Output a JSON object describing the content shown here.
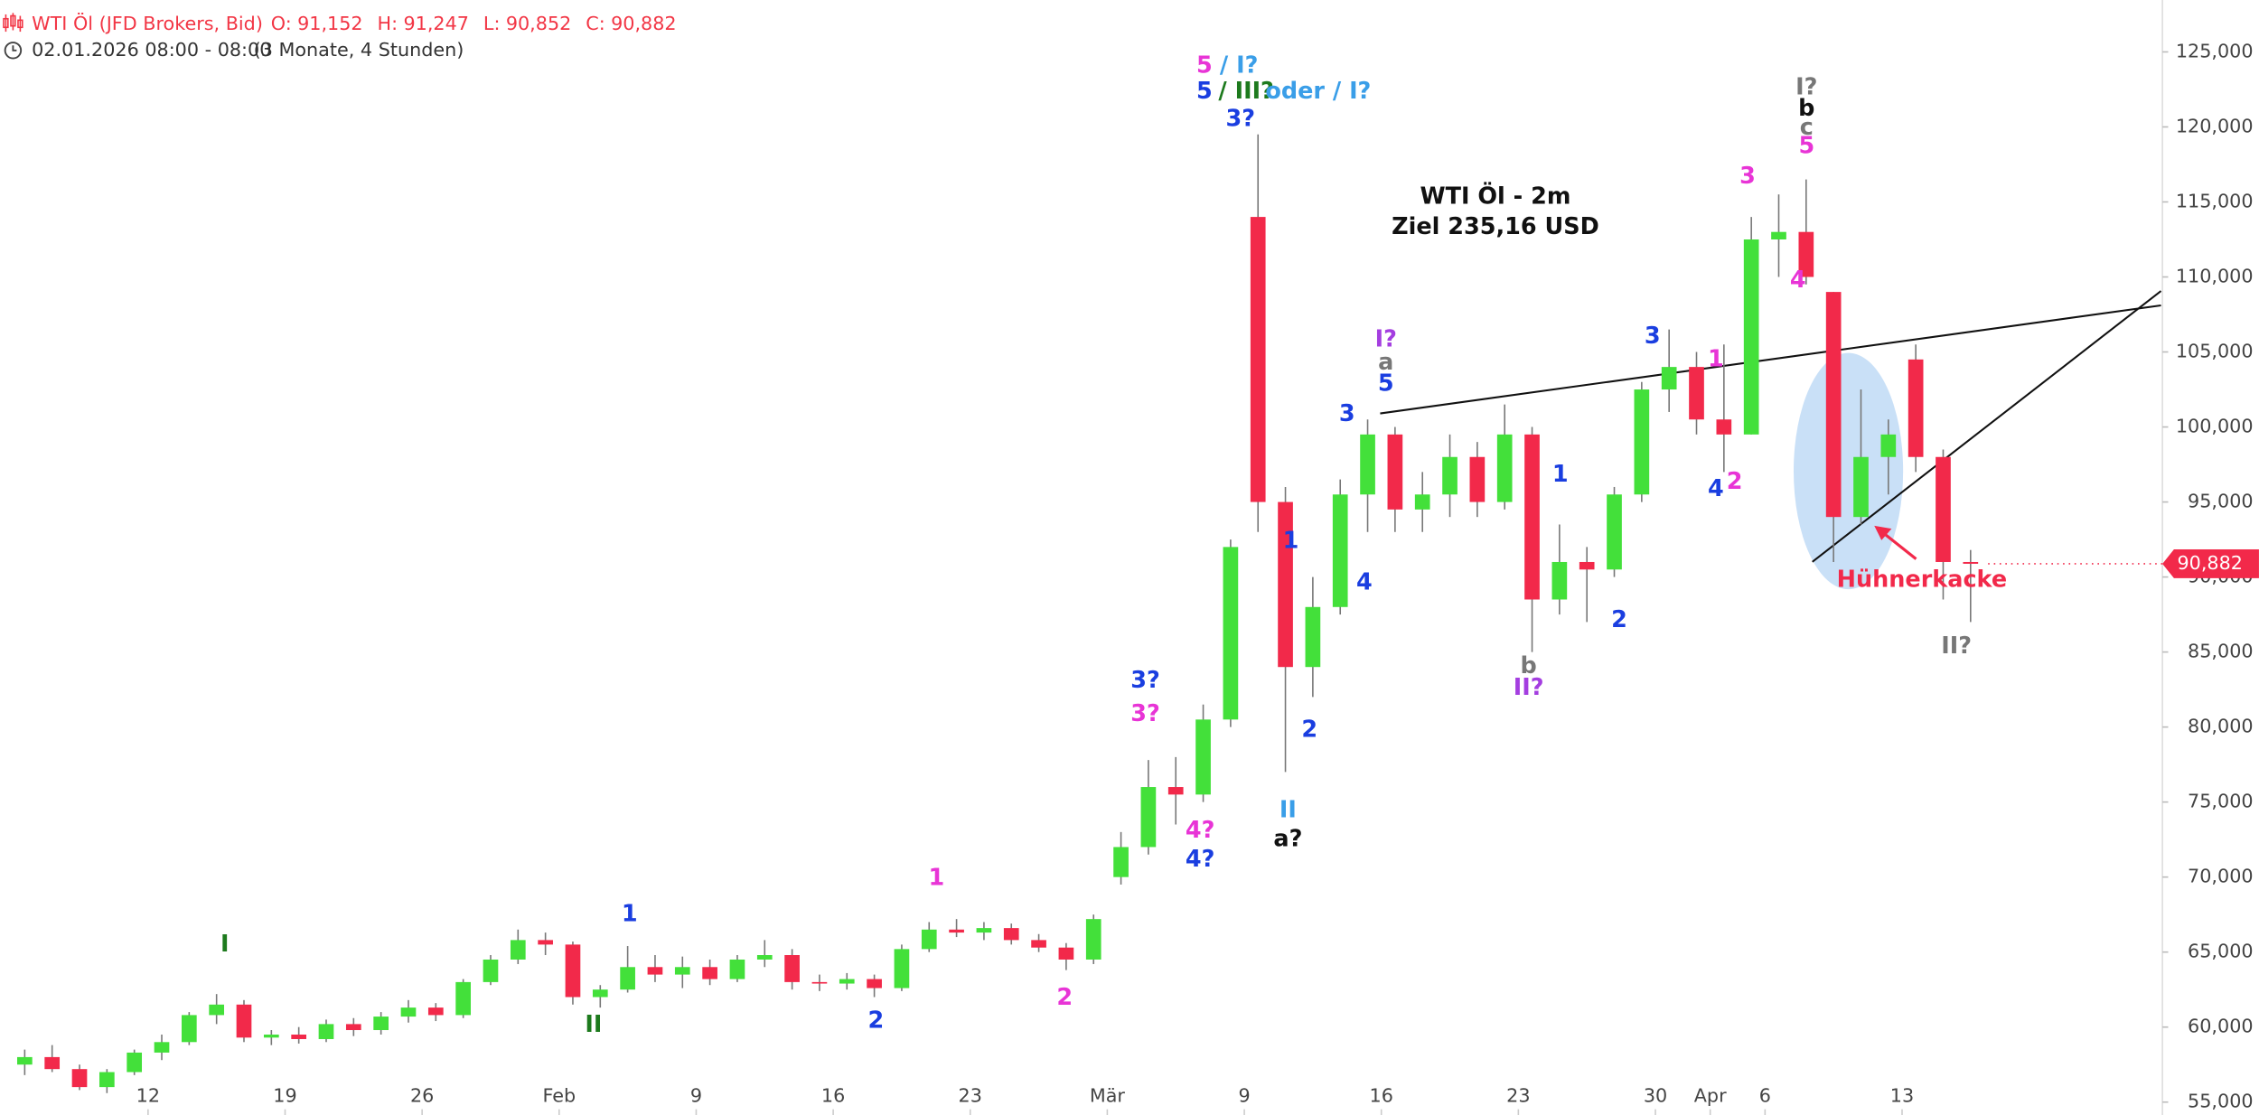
{
  "chart_data": {
    "type": "candlestick",
    "header": {
      "symbol": "WTI Öl (JFD Brokers, Bid)",
      "ohlc": [
        {
          "name": "O:",
          "text": "91,152"
        },
        {
          "name": "H:",
          "text": "91,247"
        },
        {
          "name": "L:",
          "text": "90,852"
        },
        {
          "name": "C:",
          "text": "90,882"
        }
      ],
      "date": "02.01.2026 08:00 - 08:00",
      "range": "(3 Monate, 4 Stunden)"
    },
    "title": "WTI Öl - 2m",
    "subtitle": "Ziel 235,16 USD",
    "x": [
      0.5,
      1.5,
      2.5,
      3.5,
      4.5,
      5.5,
      6.5,
      7.5,
      8.5,
      9.5,
      10.5,
      11.5,
      12.5,
      13.5,
      14.5,
      15.5,
      16.5,
      17.5,
      18.5,
      19.5,
      20.5,
      21.5,
      22.5,
      23.5,
      24.5,
      25.5,
      26.5,
      27.5,
      28.5,
      29.5,
      30.5,
      31.5,
      32.5,
      33.5,
      34.5,
      35.5,
      36.5,
      37.5,
      38.5,
      39.5,
      40.5,
      41.5,
      42.5,
      43.5,
      44.5,
      45.5,
      46.5,
      47.5,
      48.5,
      49.5,
      50.5,
      51.5,
      52.5,
      53.5,
      54.5,
      55.5,
      56.5,
      57.5,
      58.5,
      59.5,
      60.5,
      61.5,
      62.5,
      63.5,
      64.5,
      65.5,
      66.5,
      67.5,
      68.5,
      69.5,
      70.5,
      71.5
    ],
    "open": [
      57.5,
      58,
      57.2,
      56,
      57,
      58.3,
      59,
      60.8,
      61.5,
      59.3,
      59.5,
      59.2,
      60.2,
      59.8,
      60.7,
      61.3,
      60.8,
      63,
      64.5,
      65.8,
      65.5,
      62,
      62.5,
      64,
      63.5,
      64,
      63.2,
      64.5,
      64.8,
      63,
      62.9,
      63.2,
      62.6,
      65.2,
      66.5,
      66.3,
      66.6,
      65.8,
      65.3,
      64.5,
      70,
      72,
      76,
      75.5,
      80.5,
      114,
      95,
      84,
      88,
      95.5,
      99.5,
      94.5,
      95.5,
      98,
      95,
      99.5,
      88.5,
      91,
      90.5,
      95.5,
      102.5,
      104,
      100.5,
      99.5,
      112.5,
      113,
      109,
      94,
      98,
      104.5,
      98,
      91
    ],
    "high": [
      58.5,
      58.8,
      57.5,
      57.2,
      58.5,
      59.5,
      61,
      62.2,
      61.8,
      59.8,
      60,
      60.5,
      60.6,
      61,
      61.8,
      61.6,
      63.2,
      64.8,
      66.5,
      66.3,
      65.7,
      62.8,
      65.4,
      64.8,
      64.7,
      64.5,
      64.8,
      65.8,
      65.2,
      63.5,
      63.6,
      63.5,
      65.5,
      67,
      67.2,
      67,
      66.9,
      66.2,
      65.6,
      67.5,
      73,
      77.8,
      78,
      81.5,
      92.5,
      119.5,
      96,
      90,
      96.5,
      100.5,
      100,
      97,
      99.5,
      99,
      101.5,
      100,
      93.5,
      92,
      96,
      103,
      106.5,
      105,
      105.5,
      114,
      115.5,
      116.5,
      109,
      102.5,
      100.5,
      105.5,
      98.5,
      91.8
    ],
    "low": [
      56.8,
      57,
      55.8,
      55.6,
      56.8,
      57.8,
      58.8,
      60.2,
      59,
      58.8,
      58.9,
      59,
      59.4,
      59.5,
      60.3,
      60.4,
      60.6,
      62.8,
      64.2,
      64.8,
      61.5,
      61.3,
      62.3,
      63,
      62.6,
      62.8,
      63,
      64,
      62.5,
      62.4,
      62.5,
      62,
      62.4,
      65,
      66,
      65.8,
      65.5,
      65,
      63.8,
      64.2,
      69.5,
      71.5,
      73.5,
      75,
      80,
      93,
      77,
      82,
      87.5,
      93,
      93,
      93,
      94,
      94,
      94.5,
      85,
      87.5,
      87,
      90,
      95,
      101,
      99.5,
      97,
      99.5,
      110,
      109.5,
      91,
      93.5,
      95.5,
      97,
      88.5,
      87
    ],
    "close": [
      58,
      57.2,
      56,
      57,
      58.3,
      59,
      60.8,
      61.5,
      59.3,
      59.5,
      59.2,
      60.2,
      59.8,
      60.7,
      61.3,
      60.8,
      63,
      64.5,
      65.8,
      65.5,
      62,
      62.5,
      64,
      63.5,
      64,
      63.2,
      64.5,
      64.8,
      63,
      62.9,
      63.2,
      62.6,
      65.2,
      66.5,
      66.3,
      66.6,
      65.8,
      65.3,
      64.5,
      67.2,
      72,
      76,
      75.5,
      80.5,
      92,
      95,
      84,
      88,
      95.5,
      99.5,
      94.5,
      95.5,
      98,
      95,
      99.5,
      88.5,
      91,
      90.5,
      95.5,
      102.5,
      104,
      100.5,
      99.5,
      112.5,
      113,
      110,
      94,
      98,
      99.5,
      98,
      91,
      90.882
    ],
    "up_color": "#43e03a",
    "down_color": "#f2294a",
    "wick_color": "#777777",
    "xlim": [
      -0.4,
      78.5
    ],
    "xticks": [
      {
        "value": 5,
        "label": "12"
      },
      {
        "value": 10,
        "label": "19"
      },
      {
        "value": 15,
        "label": "26"
      },
      {
        "value": 20,
        "label": "Feb"
      },
      {
        "value": 25,
        "label": "9"
      },
      {
        "value": 30,
        "label": "16"
      },
      {
        "value": 35,
        "label": "23"
      },
      {
        "value": 40,
        "label": "Mär"
      },
      {
        "value": 45,
        "label": "9"
      },
      {
        "value": 50,
        "label": "16"
      },
      {
        "value": 55,
        "label": "23"
      },
      {
        "value": 60,
        "label": "30"
      },
      {
        "value": 62,
        "label": "Apr"
      },
      {
        "value": 64,
        "label": "6"
      },
      {
        "value": 69,
        "label": "13"
      }
    ],
    "ylim": [
      54.14,
      128.46
    ],
    "yticks": [
      {
        "value": 55,
        "label": "55,000"
      },
      {
        "value": 60,
        "label": "60,000"
      },
      {
        "value": 65,
        "label": "65,000"
      },
      {
        "value": 70,
        "label": "70,000"
      },
      {
        "value": 75,
        "label": "75,000"
      },
      {
        "value": 80,
        "label": "80,000"
      },
      {
        "value": 85,
        "label": "85,000"
      },
      {
        "value": 90,
        "label": "90,000"
      },
      {
        "value": 95,
        "label": "95,000"
      },
      {
        "value": 100,
        "label": "100,000"
      },
      {
        "value": 105,
        "label": "105,000"
      },
      {
        "value": 110,
        "label": "110,000"
      },
      {
        "value": 115,
        "label": "115,000"
      },
      {
        "value": 120,
        "label": "120,000"
      },
      {
        "value": 125,
        "label": "125,000"
      }
    ],
    "last_price": {
      "value": 90.882,
      "label": "90,882"
    },
    "grid": false,
    "annotations": [
      {
        "text": "5",
        "color": "#e834d6"
      },
      {
        "text": "/ I?",
        "color": "#3a9ee8"
      },
      {
        "text": "5",
        "color": "#1a3ee0"
      },
      {
        "text": "/ III?",
        "color": "#1d7a1d"
      },
      {
        "text": "oder / I?",
        "color": "#3a9ee8"
      },
      {
        "text": "3?",
        "color": "#1a3ee0"
      },
      {
        "text": "I?",
        "color": "#a43ee0"
      },
      {
        "text": "a",
        "color": "#777777"
      },
      {
        "text": "5",
        "color": "#1a3ee0"
      },
      {
        "text": "3",
        "color": "#1a3ee0"
      },
      {
        "text": "1",
        "color": "#1a3ee0"
      },
      {
        "text": "4",
        "color": "#1a3ee0"
      },
      {
        "text": "2",
        "color": "#1a3ee0"
      },
      {
        "text": "II",
        "color": "#3a9ee8"
      },
      {
        "text": "a?",
        "color": "#111111"
      },
      {
        "text": "3?",
        "color": "#1a3ee0"
      },
      {
        "text": "3?",
        "color": "#e834d6"
      },
      {
        "text": "4?",
        "color": "#e834d6"
      },
      {
        "text": "4?",
        "color": "#1a3ee0"
      },
      {
        "text": "1",
        "color": "#1a3ee0"
      },
      {
        "text": "b",
        "color": "#777777"
      },
      {
        "text": "II?",
        "color": "#a43ee0"
      },
      {
        "text": "2",
        "color": "#1a3ee0"
      },
      {
        "text": "3",
        "color": "#1a3ee0"
      },
      {
        "text": "1",
        "color": "#e834d6"
      },
      {
        "text": "4",
        "color": "#1a3ee0"
      },
      {
        "text": "2",
        "color": "#e834d6"
      },
      {
        "text": "3",
        "color": "#e834d6"
      },
      {
        "text": "I?",
        "color": "#777777"
      },
      {
        "text": "b",
        "color": "#111111"
      },
      {
        "text": "c",
        "color": "#777777"
      },
      {
        "text": "5",
        "color": "#e834d6"
      },
      {
        "text": "4",
        "color": "#e834d6"
      },
      {
        "text": "II?",
        "color": "#777777"
      },
      {
        "text": "Hühnerkacke",
        "color": "#f2294a"
      },
      {
        "text": "I",
        "color": "#1d7a1d"
      },
      {
        "text": "II",
        "color": "#1d7a1d"
      },
      {
        "text": "1",
        "color": "#1a3ee0"
      },
      {
        "text": "2",
        "color": "#1a3ee0"
      },
      {
        "text": "1",
        "color": "#e834d6"
      },
      {
        "text": "2",
        "color": "#e834d6"
      }
    ]
  }
}
